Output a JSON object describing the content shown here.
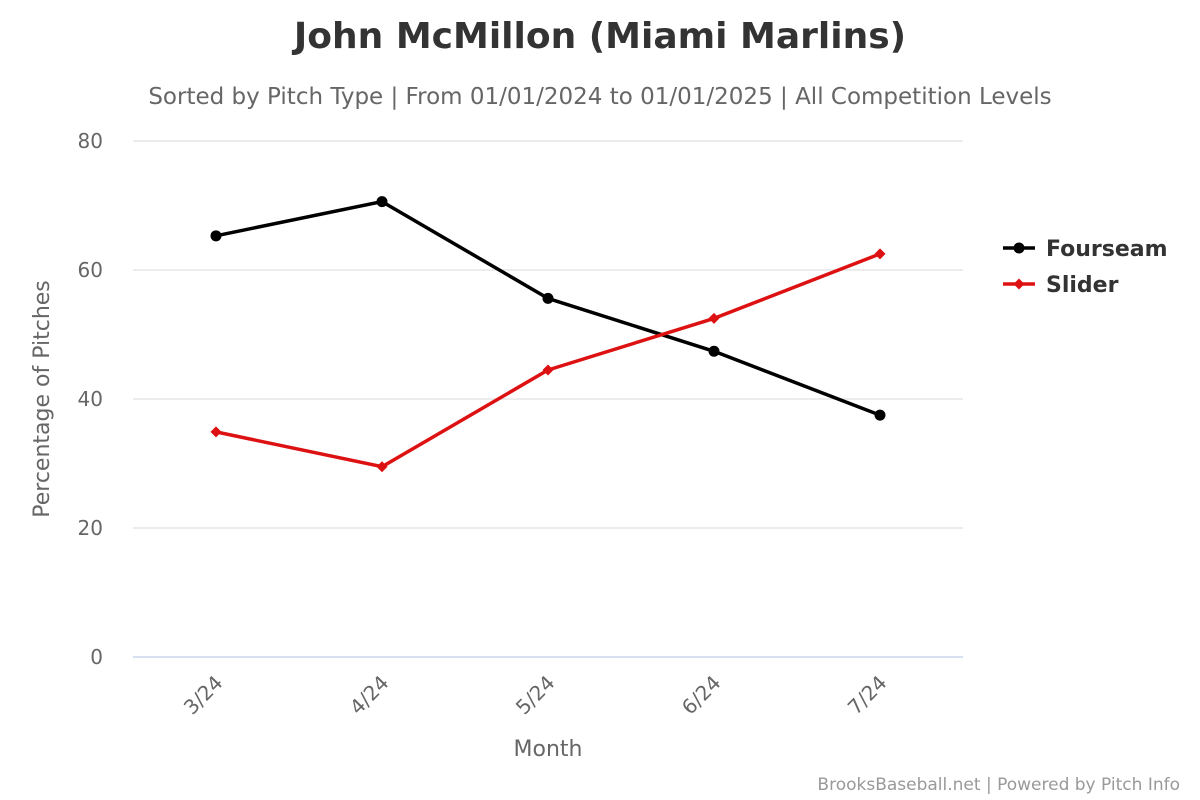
{
  "credits": "BrooksBaseball.net | Powered by Pitch Info",
  "chart_data": {
    "type": "line",
    "title": "John McMillon (Miami Marlins)",
    "subtitle": "Sorted by Pitch Type | From 01/01/2024 to 01/01/2025 | All Competition Levels",
    "xlabel": "Month",
    "ylabel": "Percentage of Pitches",
    "categories": [
      "3/24",
      "4/24",
      "5/24",
      "6/24",
      "7/24"
    ],
    "ylim": [
      0,
      80
    ],
    "yticks": [
      "0",
      "20",
      "40",
      "60",
      "80"
    ],
    "grid": true,
    "legend_position": "right",
    "series": [
      {
        "name": "Fourseam",
        "color": "#000000",
        "marker": "circle",
        "values": [
          65.3,
          70.6,
          55.6,
          47.4,
          37.5
        ]
      },
      {
        "name": "Slider",
        "color": "#dd1111",
        "marker": "diamond",
        "values": [
          34.9,
          29.5,
          44.5,
          52.5,
          62.5
        ]
      }
    ]
  }
}
